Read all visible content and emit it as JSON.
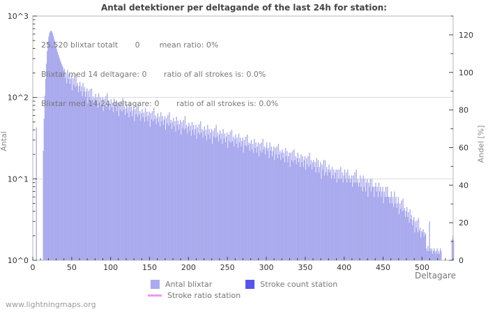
{
  "title": "Antal detektioner per deltagande of the last 24h for station:",
  "annotation": {
    "line1": "25,520 blixtar totalt       0        mean ratio: 0%",
    "line2": "Blixtar med 14 deltagare: 0       ratio of all strokes is: 0.0%",
    "line3": "Blixtar med 14-24 deltagare: 0       ratio of all strokes is: 0.0%"
  },
  "watermark": "www.lightningmaps.org",
  "colors": {
    "bar_fill": "#aaaaee",
    "station_bar_fill": "#5555ee",
    "ratio_line": "#ee99ee",
    "frame": "#b4b4b4",
    "gridline": "#dcdcdc",
    "tick": "#444444",
    "tick_label": "#333333"
  },
  "chart_data": {
    "type": "bar",
    "title": "Antal detektioner per deltagande of the last 24h for station:",
    "x_axis": {
      "label": "Deltagare",
      "min": 0,
      "max": 540,
      "major_tick_step": 50,
      "minor_tick_step": 10,
      "tick_labels": [
        0,
        50,
        100,
        150,
        200,
        250,
        300,
        350,
        400,
        450,
        500
      ]
    },
    "y_axis_left": {
      "label": "Antal",
      "scale": "log10",
      "min_exp": 0,
      "max_exp": 3,
      "tick_labels": [
        "10^0",
        "10^1",
        "10^2",
        "10^3"
      ],
      "gridlines_at_exp": [
        1,
        2
      ]
    },
    "y_axis_right": {
      "label": "Andel [%]",
      "min": 0,
      "max": 130,
      "major_tick_step": 20,
      "minor_tick_step": 10,
      "tick_labels": [
        0,
        20,
        40,
        60,
        80,
        100,
        120
      ]
    },
    "legend_position": "bottom",
    "series": [
      {
        "name": "Antal blixtar",
        "type": "bar",
        "axis": "left",
        "color": "#aaaaee",
        "x_start": 1,
        "values": [
          0,
          0,
          0,
          0,
          43,
          0,
          0,
          0,
          0,
          0,
          0,
          0,
          0,
          22,
          55,
          105,
          170,
          260,
          370,
          480,
          560,
          620,
          650,
          660,
          645,
          610,
          565,
          515,
          470,
          430,
          395,
          365,
          340,
          318,
          298,
          280,
          264,
          250,
          237,
          214,
          225,
          174,
          198,
          149,
          218,
          170,
          193,
          146,
          169,
          186,
          122,
          173,
          144,
          182,
          133,
          192,
          139,
          150,
          116,
          138,
          156,
          120,
          138,
          103,
          151,
          118,
          134,
          102,
          118,
          129,
          85,
          120,
          100,
          126,
          88,
          129,
          94,
          103,
          80,
          97,
          110,
          86,
          100,
          75,
          113,
          88,
          101,
          78,
          91,
          101,
          68,
          96,
          81,
          104,
          77,
          113,
          82,
          89,
          70,
          84,
          95,
          75,
          86,
          66,
          97,
          77,
          88,
          68,
          79,
          87,
          59,
          83,
          71,
          90,
          67,
          98,
          71,
          78,
          61,
          73,
          84,
          65,
          76,
          57,
          85,
          67,
          77,
          59,
          69,
          76,
          51,
          72,
          62,
          78,
          58,
          85,
          62,
          68,
          52,
          64,
          72,
          57,
          65,
          50,
          74,
          58,
          67,
          51,
          60,
          67,
          44,
          64,
          54,
          68,
          51,
          75,
          54,
          60,
          47,
          56,
          64,
          50,
          58,
          44,
          66,
          51,
          59,
          46,
          53,
          59,
          40,
          56,
          48,
          61,
          45,
          66,
          48,
          53,
          41,
          50,
          56,
          44,
          51,
          38,
          58,
          46,
          52,
          40,
          47,
          53,
          35,
          50,
          42,
          53,
          40,
          59,
          42,
          46,
          36,
          44,
          49,
          39,
          45,
          34,
          50,
          40,
          46,
          35,
          41,
          46,
          31,
          43,
          37,
          47,
          35,
          51,
          37,
          41,
          32,
          39,
          44,
          34,
          40,
          30,
          46,
          35,
          41,
          31,
          37,
          41,
          27,
          39,
          33,
          42,
          32,
          46,
          33,
          37,
          29,
          35,
          39,
          31,
          36,
          27,
          41,
          31,
          36,
          28,
          33,
          37,
          24,
          35,
          29,
          38,
          28,
          40,
          29,
          33,
          25,
          31,
          35,
          27,
          32,
          24,
          36,
          28,
          32,
          25,
          29,
          32,
          21,
          30,
          26,
          33,
          25,
          35,
          26,
          28,
          22,
          27,
          30,
          23,
          27,
          21,
          31,
          24,
          28,
          21,
          25,
          28,
          19,
          27,
          22,
          28,
          21,
          31,
          23,
          25,
          20,
          24,
          28,
          22,
          24,
          18,
          28,
          22,
          25,
          19,
          22,
          25,
          17,
          24,
          20,
          25,
          18,
          27,
          20,
          22,
          17,
          21,
          23,
          18,
          21,
          16,
          24,
          19,
          22,
          16,
          19,
          21,
          14,
          21,
          17,
          22,
          16,
          23,
          17,
          19,
          15,
          18,
          21,
          16,
          18,
          14,
          20,
          16,
          19,
          14,
          17,
          19,
          13,
          18,
          15,
          19,
          14,
          21,
          15,
          17,
          13,
          16,
          17,
          14,
          16,
          12,
          18,
          14,
          17,
          12,
          14,
          16,
          10,
          15,
          13,
          17,
          11,
          17,
          12,
          14,
          11,
          13,
          15,
          12,
          13,
          10,
          14,
          11,
          13,
          10,
          12,
          13,
          9,
          13,
          10,
          13,
          10,
          14,
          10,
          12,
          9,
          11,
          13,
          10,
          12,
          9,
          13,
          10,
          11,
          9,
          10,
          11,
          8,
          11,
          9,
          12,
          9,
          13,
          9,
          10,
          8,
          9,
          11,
          8,
          10,
          7,
          11,
          8,
          10,
          7,
          9,
          10,
          6,
          9,
          8,
          10,
          7,
          10,
          8,
          8,
          6,
          8,
          9,
          7,
          8,
          6,
          9,
          7,
          8,
          6,
          7,
          8,
          5,
          7,
          6,
          8,
          6,
          8,
          6,
          6,
          5,
          6,
          7,
          5,
          6,
          4.5,
          7,
          5,
          6,
          4.4,
          5,
          6,
          3.7,
          5,
          4.3,
          5.4,
          4,
          5.7,
          4.1,
          4.4,
          3.4,
          4,
          4.5,
          3.4,
          3.9,
          2.9,
          4.2,
          3.2,
          3.6,
          2.7,
          3.1,
          3.4,
          2.2,
          3,
          2.5,
          3.1,
          2.2,
          3.3,
          2.3,
          2.5,
          1.9,
          2.3,
          2.2,
          2.4,
          2,
          2.2,
          2.1,
          1.4,
          1.3,
          1.5,
          1.3,
          3,
          1.4,
          1.3,
          1.4,
          1.2,
          1.3,
          1.4,
          1.3,
          1.2,
          1.3,
          1.4,
          1.2,
          1.3,
          1.2,
          1.4,
          1.3,
          0,
          0,
          0,
          0,
          0,
          0,
          0,
          0,
          0,
          0,
          0,
          0,
          0,
          1.8,
          2,
          1.8,
          0,
          0,
          0,
          0
        ]
      },
      {
        "name": "Stroke count station",
        "type": "bar",
        "axis": "right",
        "color": "#5555ee",
        "values": []
      },
      {
        "name": "Stroke ratio station",
        "type": "line",
        "axis": "right",
        "color": "#ee99ee",
        "values": []
      }
    ]
  }
}
